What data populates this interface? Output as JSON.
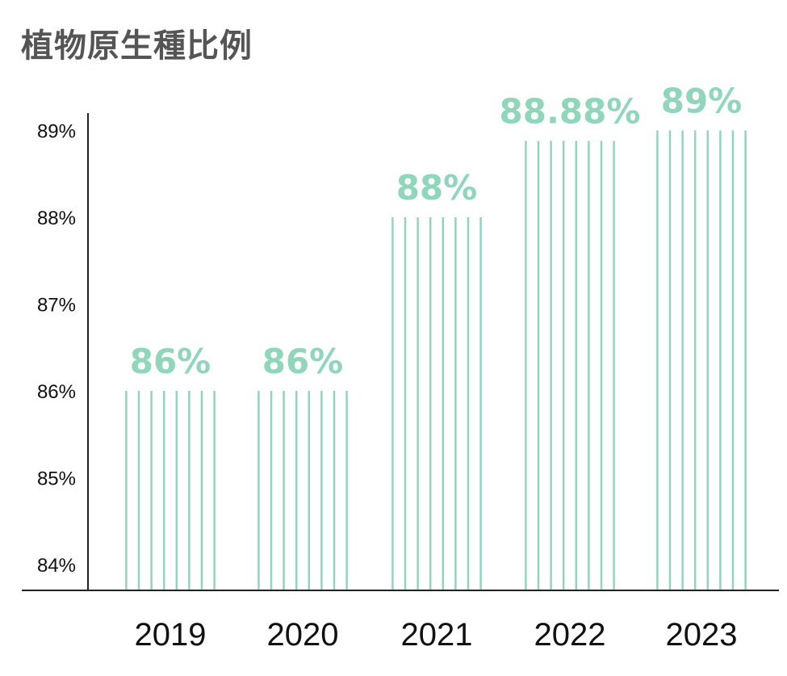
{
  "title": "植物原生種比例",
  "colors": {
    "accent": "#8fd6bd",
    "axis": "#222222",
    "title": "#555555"
  },
  "chart_data": {
    "type": "bar",
    "title": "植物原生種比例",
    "xlabel": "",
    "ylabel": "",
    "categories": [
      "2019",
      "2020",
      "2021",
      "2022",
      "2023"
    ],
    "values": [
      86,
      86,
      88,
      88.88,
      89
    ],
    "data_labels": [
      "86%",
      "86%",
      "88%",
      "88.88%",
      "89%"
    ],
    "ylim": [
      83.7,
      89.2
    ],
    "yticks": [
      84,
      85,
      86,
      87,
      88,
      89
    ],
    "ytick_labels": [
      "84%",
      "85%",
      "86%",
      "87%",
      "88%",
      "89%"
    ],
    "grid": false,
    "legend": "none",
    "bar_style": "vertical-stripes"
  }
}
